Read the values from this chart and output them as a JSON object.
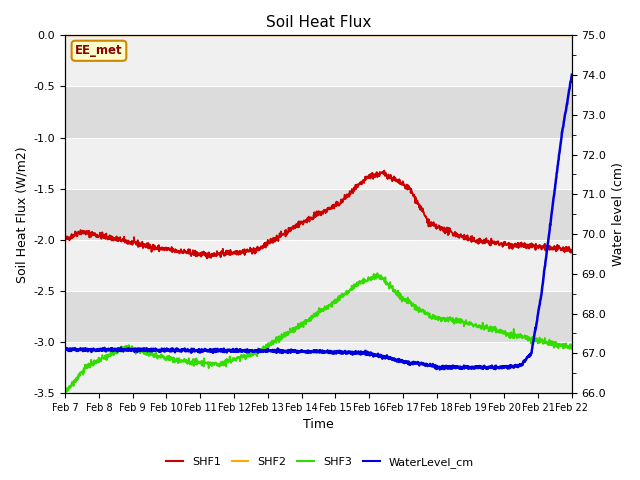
{
  "title": "Soil Heat Flux",
  "ylabel_left": "Soil Heat Flux (W/m2)",
  "ylabel_right": "Water level (cm)",
  "xlabel": "Time",
  "ylim_left": [
    -3.5,
    0.0
  ],
  "ylim_right": [
    66.0,
    75.0
  ],
  "yticks_left": [
    0.0,
    -0.5,
    -1.0,
    -1.5,
    -2.0,
    -2.5,
    -3.0,
    -3.5
  ],
  "yticks_right": [
    66.0,
    67.0,
    68.0,
    69.0,
    70.0,
    71.0,
    72.0,
    73.0,
    74.0,
    75.0
  ],
  "xtick_labels": [
    "Feb 7",
    "Feb 8",
    "Feb 9",
    "Feb 10",
    "Feb 11",
    "Feb 12",
    "Feb 13",
    "Feb 14",
    "Feb 15",
    "Feb 16",
    "Feb 17",
    "Feb 18",
    "Feb 19",
    "Feb 20",
    "Feb 21",
    "Feb 22"
  ],
  "annotation_text": "EE_met",
  "colors": {
    "SHF1": "#cc0000",
    "SHF2": "#ffaa00",
    "SHF3": "#33dd00",
    "WaterLevel_cm": "#0000dd",
    "background_light": "#f0f0f0",
    "background_dark": "#dcdcdc",
    "grid_line": "#ffffff"
  },
  "legend_labels": [
    "SHF1",
    "SHF2",
    "SHF3",
    "WaterLevel_cm"
  ]
}
